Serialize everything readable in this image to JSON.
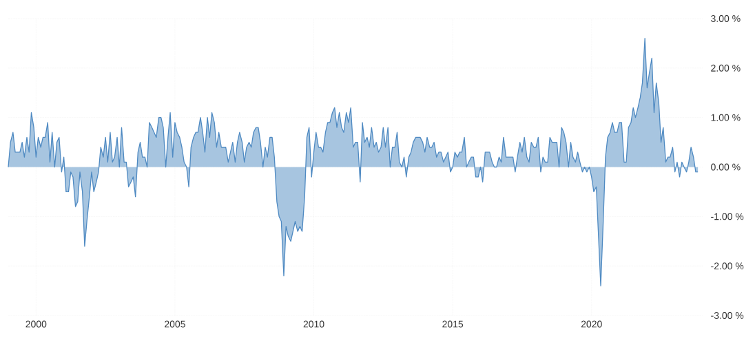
{
  "chart_data": {
    "type": "area",
    "grid": true,
    "xlim": [
      "1999-01",
      "2024-01"
    ],
    "xticks": [
      "2000",
      "2005",
      "2010",
      "2015",
      "2020"
    ],
    "ylim": [
      -3,
      3
    ],
    "yticks": [
      {
        "value": -3,
        "label": "-3.00 %"
      },
      {
        "value": -2,
        "label": "-2.00 %"
      },
      {
        "value": -1,
        "label": "-1.00 %"
      },
      {
        "value": 0,
        "label": "0.00 %"
      },
      {
        "value": 1,
        "label": "1.00 %"
      },
      {
        "value": 2,
        "label": "2.00 %"
      },
      {
        "value": 3,
        "label": "3.00 %"
      }
    ],
    "x": [
      "1999-01",
      "1999-02",
      "1999-03",
      "1999-04",
      "1999-05",
      "1999-06",
      "1999-07",
      "1999-08",
      "1999-09",
      "1999-10",
      "1999-11",
      "1999-12",
      "2000-01",
      "2000-02",
      "2000-03",
      "2000-04",
      "2000-05",
      "2000-06",
      "2000-07",
      "2000-08",
      "2000-09",
      "2000-10",
      "2000-11",
      "2000-12",
      "2001-01",
      "2001-02",
      "2001-03",
      "2001-04",
      "2001-05",
      "2001-06",
      "2001-07",
      "2001-08",
      "2001-09",
      "2001-10",
      "2001-11",
      "2001-12",
      "2002-01",
      "2002-02",
      "2002-03",
      "2002-04",
      "2002-05",
      "2002-06",
      "2002-07",
      "2002-08",
      "2002-09",
      "2002-10",
      "2002-11",
      "2002-12",
      "2003-01",
      "2003-02",
      "2003-03",
      "2003-04",
      "2003-05",
      "2003-06",
      "2003-07",
      "2003-08",
      "2003-09",
      "2003-10",
      "2003-11",
      "2003-12",
      "2004-01",
      "2004-02",
      "2004-03",
      "2004-04",
      "2004-05",
      "2004-06",
      "2004-07",
      "2004-08",
      "2004-09",
      "2004-10",
      "2004-11",
      "2004-12",
      "2005-01",
      "2005-02",
      "2005-03",
      "2005-04",
      "2005-05",
      "2005-06",
      "2005-07",
      "2005-08",
      "2005-09",
      "2005-10",
      "2005-11",
      "2005-12",
      "2006-01",
      "2006-02",
      "2006-03",
      "2006-04",
      "2006-05",
      "2006-06",
      "2006-07",
      "2006-08",
      "2006-09",
      "2006-10",
      "2006-11",
      "2006-12",
      "2007-01",
      "2007-02",
      "2007-03",
      "2007-04",
      "2007-05",
      "2007-06",
      "2007-07",
      "2007-08",
      "2007-09",
      "2007-10",
      "2007-11",
      "2007-12",
      "2008-01",
      "2008-02",
      "2008-03",
      "2008-04",
      "2008-05",
      "2008-06",
      "2008-07",
      "2008-08",
      "2008-09",
      "2008-10",
      "2008-11",
      "2008-12",
      "2009-01",
      "2009-02",
      "2009-03",
      "2009-04",
      "2009-05",
      "2009-06",
      "2009-07",
      "2009-08",
      "2009-09",
      "2009-10",
      "2009-11",
      "2009-12",
      "2010-01",
      "2010-02",
      "2010-03",
      "2010-04",
      "2010-05",
      "2010-06",
      "2010-07",
      "2010-08",
      "2010-09",
      "2010-10",
      "2010-11",
      "2010-12",
      "2011-01",
      "2011-02",
      "2011-03",
      "2011-04",
      "2011-05",
      "2011-06",
      "2011-07",
      "2011-08",
      "2011-09",
      "2011-10",
      "2011-11",
      "2011-12",
      "2012-01",
      "2012-02",
      "2012-03",
      "2012-04",
      "2012-05",
      "2012-06",
      "2012-07",
      "2012-08",
      "2012-09",
      "2012-10",
      "2012-11",
      "2012-12",
      "2013-01",
      "2013-02",
      "2013-03",
      "2013-04",
      "2013-05",
      "2013-06",
      "2013-07",
      "2013-08",
      "2013-09",
      "2013-10",
      "2013-11",
      "2013-12",
      "2014-01",
      "2014-02",
      "2014-03",
      "2014-04",
      "2014-05",
      "2014-06",
      "2014-07",
      "2014-08",
      "2014-09",
      "2014-10",
      "2014-11",
      "2014-12",
      "2015-01",
      "2015-02",
      "2015-03",
      "2015-04",
      "2015-05",
      "2015-06",
      "2015-07",
      "2015-08",
      "2015-09",
      "2015-10",
      "2015-11",
      "2015-12",
      "2016-01",
      "2016-02",
      "2016-03",
      "2016-04",
      "2016-05",
      "2016-06",
      "2016-07",
      "2016-08",
      "2016-09",
      "2016-10",
      "2016-11",
      "2016-12",
      "2017-01",
      "2017-02",
      "2017-03",
      "2017-04",
      "2017-05",
      "2017-06",
      "2017-07",
      "2017-08",
      "2017-09",
      "2017-10",
      "2017-11",
      "2017-12",
      "2018-01",
      "2018-02",
      "2018-03",
      "2018-04",
      "2018-05",
      "2018-06",
      "2018-07",
      "2018-08",
      "2018-09",
      "2018-10",
      "2018-11",
      "2018-12",
      "2019-01",
      "2019-02",
      "2019-03",
      "2019-04",
      "2019-05",
      "2019-06",
      "2019-07",
      "2019-08",
      "2019-09",
      "2019-10",
      "2019-11",
      "2019-12",
      "2020-01",
      "2020-02",
      "2020-03",
      "2020-04",
      "2020-05",
      "2020-06",
      "2020-07",
      "2020-08",
      "2020-09",
      "2020-10",
      "2020-11",
      "2020-12",
      "2021-01",
      "2021-02",
      "2021-03",
      "2021-04",
      "2021-05",
      "2021-06",
      "2021-07",
      "2021-08",
      "2021-09",
      "2021-10",
      "2021-11",
      "2021-12",
      "2022-01",
      "2022-02",
      "2022-03",
      "2022-04",
      "2022-05",
      "2022-06",
      "2022-07",
      "2022-08",
      "2022-09",
      "2022-10",
      "2022-11",
      "2022-12",
      "2023-01",
      "2023-02",
      "2023-03",
      "2023-04",
      "2023-05",
      "2023-06",
      "2023-07",
      "2023-08",
      "2023-09",
      "2023-10",
      "2023-11"
    ],
    "series": [
      {
        "color": "#4f8ac2",
        "values": [
          0,
          0.5,
          0.7,
          0.3,
          0.3,
          0.3,
          0.5,
          0.2,
          0.6,
          0.3,
          1.1,
          0.8,
          0.2,
          0.6,
          0.4,
          0.6,
          0.6,
          0.9,
          0.1,
          0.7,
          0,
          0.5,
          0.6,
          -0.1,
          0.2,
          -0.5,
          -0.5,
          -0.1,
          -0.2,
          -0.8,
          -0.7,
          -0.1,
          -0.5,
          -1.6,
          -1.1,
          -0.6,
          -0.1,
          -0.5,
          -0.3,
          -0.1,
          0.4,
          0.2,
          0.6,
          0.1,
          0.7,
          0.1,
          0.2,
          0.6,
          0,
          0.8,
          0.1,
          0.1,
          -0.4,
          -0.3,
          -0.2,
          -0.6,
          0.3,
          0.5,
          0.2,
          0.2,
          0,
          0.9,
          0.8,
          0.7,
          0.6,
          1.0,
          1.0,
          0.8,
          0,
          0.6,
          1.1,
          0.2,
          0.9,
          0.7,
          0.6,
          0.4,
          0.1,
          0,
          -0.4,
          0.4,
          0.6,
          0.7,
          0.7,
          1.0,
          0.7,
          0.3,
          1.0,
          0.6,
          1.1,
          0.9,
          0.4,
          0.7,
          0.4,
          0.4,
          0.4,
          0.1,
          0.3,
          0.5,
          0.1,
          0.5,
          0.7,
          0.5,
          0.1,
          0.4,
          0.5,
          0.4,
          0.7,
          0.8,
          0.8,
          0.5,
          0,
          0.4,
          0.2,
          0.6,
          0.6,
          0.2,
          -0.7,
          -1.0,
          -1.1,
          -2.2,
          -1.2,
          -1.4,
          -1.5,
          -1.3,
          -1.1,
          -1.3,
          -1.2,
          -1.3,
          -0.6,
          0.6,
          0.8,
          -0.2,
          0.3,
          0.7,
          0.4,
          0.4,
          0.3,
          0.7,
          0.9,
          0.9,
          1.1,
          1.2,
          0.8,
          1.1,
          0.8,
          0.7,
          1.1,
          0.9,
          1.2,
          0.4,
          0.5,
          0.5,
          -0.3,
          0.9,
          0.5,
          0.6,
          0.4,
          0.8,
          0.4,
          0.5,
          0.3,
          0.4,
          0.8,
          0.4,
          0.8,
          0,
          0.4,
          0.4,
          0.7,
          0.1,
          0,
          0.2,
          -0.2,
          0.2,
          0.3,
          0.5,
          0.6,
          0.6,
          0.6,
          0.5,
          0.3,
          0.6,
          0.4,
          0.4,
          0.5,
          0.2,
          0.3,
          0.3,
          0.1,
          0.2,
          0.3,
          -0.1,
          0,
          0.3,
          0.2,
          0.3,
          0.3,
          0.6,
          0,
          0.1,
          0.2,
          0.2,
          -0.2,
          -0.2,
          0,
          -0.3,
          0.3,
          0.3,
          0.3,
          0.1,
          0,
          0,
          0.2,
          0.1,
          0.6,
          0.2,
          0.2,
          0.2,
          0.2,
          -0.1,
          0.2,
          0.5,
          0.3,
          0.6,
          0.2,
          0.1,
          0.5,
          0.4,
          0.4,
          0.6,
          -0.1,
          0.2,
          0.1,
          0.1,
          0.6,
          0.5,
          0.5,
          0.5,
          0,
          0.8,
          0.7,
          0.5,
          0,
          0.5,
          0.2,
          0.1,
          0.3,
          0.1,
          -0.1,
          0,
          -0.1,
          0,
          -0.2,
          -0.5,
          -0.4,
          -1.4,
          -2.4,
          -1.1,
          0.2,
          0.6,
          0.7,
          0.9,
          0.7,
          0.7,
          0.9,
          0.9,
          0.1,
          0.1,
          0.8,
          0.9,
          1.2,
          1.0,
          1.2,
          1.4,
          1.7,
          2.6,
          1.6,
          1.9,
          2.2,
          1.1,
          1.7,
          1.3,
          0.5,
          0.8,
          0.1,
          0.2,
          0.2,
          0.4,
          -0.1,
          0.1,
          -0.2,
          0.1,
          0,
          -0.1,
          0.1,
          0.4,
          0.2,
          -0.1,
          -0.1
        ]
      }
    ]
  }
}
